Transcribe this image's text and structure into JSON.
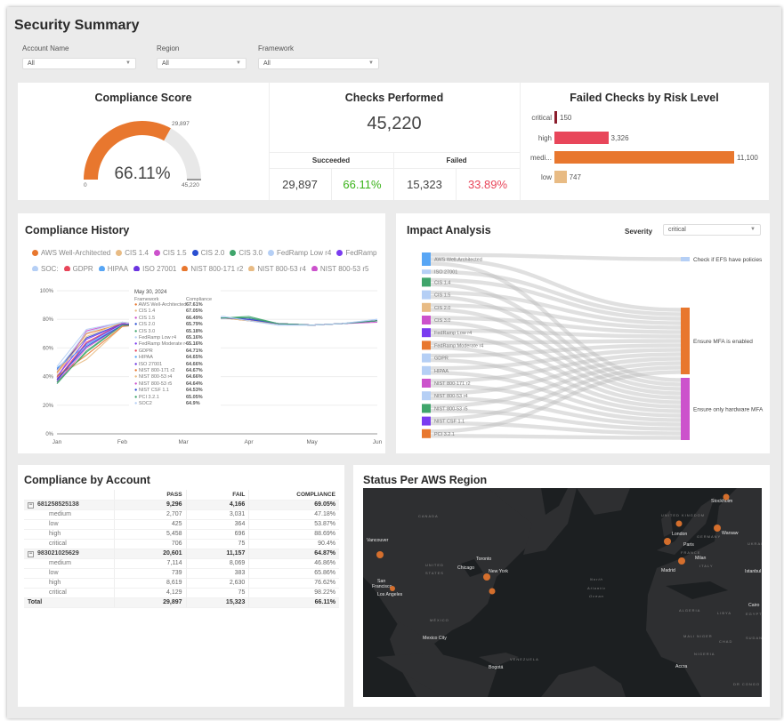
{
  "page": {
    "title": "Security Summary"
  },
  "filters": [
    {
      "label": "Account Name",
      "value": "All"
    },
    {
      "label": "Region",
      "value": "All"
    },
    {
      "label": "Framework",
      "value": "All"
    }
  ],
  "compliance_score": {
    "title": "Compliance Score",
    "value": "66.11%",
    "fraction": 0.6611,
    "min_label": "0",
    "max_label": "45,220",
    "current_label": "29,897",
    "accent": "#e8772e"
  },
  "checks": {
    "title": "Checks Performed",
    "total": "45,220",
    "succeeded_label": "Succeeded",
    "failed_label": "Failed",
    "succeeded": "29,897",
    "succeeded_pct": "66.11%",
    "failed": "15,323",
    "failed_pct": "33.89%",
    "success_color": "#3bb31a",
    "fail_color": "#e8465a"
  },
  "failed_by_risk": {
    "title": "Failed Checks by Risk Level",
    "type": "bar",
    "categories": [
      "critical",
      "high",
      "medi...",
      "low"
    ],
    "values": [
      150,
      3326,
      11100,
      747
    ],
    "labels": [
      "150",
      "3,326",
      "11,100",
      "747"
    ],
    "colors": [
      "#8b1d2c",
      "#e8465a",
      "#e8772e",
      "#e8bb84"
    ]
  },
  "history": {
    "title": "Compliance History",
    "legend": [
      {
        "name": "AWS Well-Architected",
        "color": "#e8772e"
      },
      {
        "name": "CIS 1.4",
        "color": "#e8bb84"
      },
      {
        "name": "CIS 1.5",
        "color": "#cc52cc"
      },
      {
        "name": "CIS 2.0",
        "color": "#2a4fd1"
      },
      {
        "name": "CIS 3.0",
        "color": "#3fa56b"
      },
      {
        "name": "FedRamp Low r4",
        "color": "#b5cff5"
      },
      {
        "name": "FedRamp",
        "color": "#7a3cf0"
      },
      {
        "name": "SOC:",
        "color": "#b5cff5"
      },
      {
        "name": "GDPR",
        "color": "#e8465a"
      },
      {
        "name": "HIPAA",
        "color": "#58a6f5"
      },
      {
        "name": "ISO 27001",
        "color": "#6b34e0"
      },
      {
        "name": "NIST 800-171 r2",
        "color": "#e8772e"
      },
      {
        "name": "NIST 800-53 r4",
        "color": "#e8bb84"
      },
      {
        "name": "NIST 800-53 r5",
        "color": "#cc52cc"
      }
    ],
    "tooltip": {
      "date": "May 30, 2024",
      "col1": "Framework",
      "col2": "Compliance",
      "rows": [
        [
          "AWS Well-Architected",
          "67.61%",
          "#e8772e"
        ],
        [
          "CIS 1.4",
          "67.05%",
          "#e8bb84"
        ],
        [
          "CIS 1.5",
          "66.49%",
          "#cc52cc"
        ],
        [
          "CIS 2.0",
          "65.79%",
          "#2a4fd1"
        ],
        [
          "CIS 3.0",
          "65.18%",
          "#3fa56b"
        ],
        [
          "FedRamp Low r4",
          "65.16%",
          "#b5cff5"
        ],
        [
          "FedRamp Moderate r4",
          "65.16%",
          "#7a3cf0"
        ],
        [
          "GDPR",
          "64.71%",
          "#e8465a"
        ],
        [
          "HIPAA",
          "64.65%",
          "#58a6f5"
        ],
        [
          "ISO 27001",
          "64.66%",
          "#6b34e0"
        ],
        [
          "NIST 800-171 r2",
          "64.67%",
          "#e8772e"
        ],
        [
          "NIST 800-53 r4",
          "64.66%",
          "#e8bb84"
        ],
        [
          "NIST 800-53 r5",
          "64.64%",
          "#cc52cc"
        ],
        [
          "NIST CSF 1.1",
          "64.53%",
          "#2a4fd1"
        ],
        [
          "PCI 3.2.1",
          "65.05%",
          "#3fa56b"
        ],
        [
          "SOC2",
          "64.9%",
          "#b5cff5"
        ]
      ]
    }
  },
  "chart_data": {
    "type": "line",
    "xlabel": "",
    "ylabel": "",
    "ylim": [
      0,
      100
    ],
    "y_ticks": [
      "0%",
      "20%",
      "40%",
      "60%",
      "80%",
      "100%"
    ],
    "x_ticks": [
      "Jan",
      "Feb",
      "Mar",
      "Apr",
      "May",
      "Jun"
    ],
    "grid": true,
    "legend": "top",
    "x": [
      "2024-01-01",
      "2024-01-15",
      "2024-02-01",
      "2024-02-08",
      "2024-03-20",
      "2024-04-01",
      "2024-04-15",
      "2024-05-01",
      "2024-05-15",
      "2024-06-01"
    ],
    "series": [
      {
        "name": "AWS Well-Architected",
        "color": "#e8772e",
        "values": [
          43,
          70,
          77,
          76,
          81,
          80,
          77,
          76,
          77,
          79
        ]
      },
      {
        "name": "CIS 1.4",
        "color": "#e8bb84",
        "values": [
          41,
          52,
          75,
          76,
          81,
          79,
          77,
          76,
          77,
          79
        ]
      },
      {
        "name": "CIS 1.5",
        "color": "#cc52cc",
        "values": [
          39,
          72,
          78,
          77,
          81,
          80,
          77,
          76,
          77,
          79
        ]
      },
      {
        "name": "CIS 2.0",
        "color": "#2a4fd1",
        "values": [
          45,
          67,
          77,
          76,
          81,
          81,
          77,
          76,
          77,
          79
        ]
      },
      {
        "name": "CIS 3.0",
        "color": "#3fa56b",
        "values": [
          35,
          58,
          76,
          76,
          81,
          82,
          77,
          76,
          77,
          79
        ]
      },
      {
        "name": "FedRamp Low r4",
        "color": "#b5cff5",
        "values": [
          47,
          73,
          78,
          77,
          82,
          79,
          76,
          76,
          77,
          80
        ]
      },
      {
        "name": "FedRamp Moderate r4",
        "color": "#7a3cf0",
        "values": [
          40,
          66,
          77,
          76,
          81,
          80,
          77,
          76,
          77,
          79
        ]
      },
      {
        "name": "GDPR",
        "color": "#e8465a",
        "values": [
          38,
          64,
          77,
          76,
          81,
          80,
          77,
          76,
          77,
          79
        ]
      },
      {
        "name": "HIPAA",
        "color": "#58a6f5",
        "values": [
          46,
          62,
          76,
          76,
          81,
          80,
          77,
          76,
          77,
          79
        ]
      },
      {
        "name": "ISO 27001",
        "color": "#6b34e0",
        "values": [
          37,
          63,
          77,
          76,
          81,
          80,
          77,
          76,
          77,
          79
        ]
      },
      {
        "name": "NIST 800-171 r2",
        "color": "#e8772e",
        "values": [
          40,
          55,
          75,
          76,
          81,
          79,
          77,
          76,
          77,
          79
        ]
      },
      {
        "name": "NIST 800-53 r4",
        "color": "#e8bb84",
        "values": [
          42,
          68,
          78,
          77,
          81,
          79,
          77,
          76,
          77,
          79
        ]
      },
      {
        "name": "NIST 800-53 r5",
        "color": "#cc52cc",
        "values": [
          36,
          60,
          76,
          76,
          81,
          80,
          77,
          76,
          77,
          78
        ]
      },
      {
        "name": "NIST CSF 1.1",
        "color": "#2a4fd1",
        "values": [
          38,
          61,
          76,
          76,
          81,
          80,
          77,
          76,
          77,
          79
        ]
      },
      {
        "name": "PCI 3.2.1",
        "color": "#3fa56b",
        "values": [
          36,
          57,
          76,
          76,
          81,
          81,
          77,
          76,
          77,
          79
        ]
      },
      {
        "name": "SOC2",
        "color": "#b5cff5",
        "values": [
          44,
          71,
          78,
          77,
          82,
          79,
          76,
          76,
          77,
          80
        ]
      }
    ]
  },
  "impact": {
    "title": "Impact Analysis",
    "severity_label": "Severity",
    "severity_value": "critical",
    "sources": [
      {
        "name": "AWS Well-Architected",
        "color": "#58a6f5"
      },
      {
        "name": "ISO 27001",
        "color": "#b5cff5"
      },
      {
        "name": "CIS 1.4",
        "color": "#3fa56b"
      },
      {
        "name": "CIS 1.5",
        "color": "#b5cff5"
      },
      {
        "name": "CIS 2.0",
        "color": "#e8bb84"
      },
      {
        "name": "CIS 3.0",
        "color": "#cc52cc"
      },
      {
        "name": "FedRamp Low r4",
        "color": "#7a3cf0"
      },
      {
        "name": "FedRamp Moderate r4",
        "color": "#e8772e"
      },
      {
        "name": "GDPR",
        "color": "#b5cff5"
      },
      {
        "name": "HIPAA",
        "color": "#b5cff5"
      },
      {
        "name": "NIST 800-171 r2",
        "color": "#cc52cc"
      },
      {
        "name": "NIST 800-53 r4",
        "color": "#b5cff5"
      },
      {
        "name": "NIST 800-53 r5",
        "color": "#3fa56b"
      },
      {
        "name": "NIST CSF 1.1",
        "color": "#7a3cf0"
      },
      {
        "name": "PCI 3.2.1",
        "color": "#e8772e"
      }
    ],
    "targets": [
      {
        "name": "Check if EFS have policies",
        "color": "#b5cff5"
      },
      {
        "name": "Ensure MFA is enabled",
        "color": "#e8772e"
      },
      {
        "name": "Ensure only hardware MFA",
        "color": "#cc52cc"
      }
    ]
  },
  "account_table": {
    "title": "Compliance by Account",
    "columns": [
      "",
      "PASS",
      "FAIL",
      "COMPLIANCE"
    ],
    "rows": [
      {
        "label": "681258525138",
        "pass": "9,296",
        "fail": "4,166",
        "compliance": "69.05%",
        "group": true
      },
      {
        "label": "medium",
        "pass": "2,707",
        "fail": "3,031",
        "compliance": "47.18%"
      },
      {
        "label": "low",
        "pass": "425",
        "fail": "364",
        "compliance": "53.87%"
      },
      {
        "label": "high",
        "pass": "5,458",
        "fail": "696",
        "compliance": "88.69%"
      },
      {
        "label": "critical",
        "pass": "706",
        "fail": "75",
        "compliance": "90.4%"
      },
      {
        "label": "983021025629",
        "pass": "20,601",
        "fail": "11,157",
        "compliance": "64.87%",
        "group": true
      },
      {
        "label": "medium",
        "pass": "7,114",
        "fail": "8,069",
        "compliance": "46.86%"
      },
      {
        "label": "low",
        "pass": "739",
        "fail": "383",
        "compliance": "65.86%"
      },
      {
        "label": "high",
        "pass": "8,619",
        "fail": "2,630",
        "compliance": "76.62%"
      },
      {
        "label": "critical",
        "pass": "4,129",
        "fail": "75",
        "compliance": "98.22%"
      }
    ],
    "total": {
      "label": "Total",
      "pass": "29,897",
      "fail": "15,323",
      "compliance": "66.11%"
    }
  },
  "region_map": {
    "title": "Status Per AWS Region",
    "labels": [
      "CANADA",
      "UNITED",
      "STATES",
      "MÉXICO",
      "Vancouver",
      "San",
      "Francisco",
      "Los Angeles",
      "Chicago",
      "Toronto",
      "New York",
      "Mexico City",
      "Bogotá",
      "VENEZUELA",
      "North",
      "Atlantic",
      "Ocean",
      "UNITED KINGDOM",
      "London",
      "GERMANY",
      "Paris",
      "FRANCE",
      "Milan",
      "ITALY",
      "Madrid",
      "Warsaw",
      "Stockholm",
      "Istanbul",
      "ALGERIA",
      "LIBYA",
      "EGYPT",
      "Cairo",
      "MALI",
      "NIGER",
      "CHAD",
      "SUDAN",
      "NIGERIA",
      "Accra",
      "DR CONGO",
      "UKRAI"
    ],
    "marker_color": "#e8772e"
  }
}
